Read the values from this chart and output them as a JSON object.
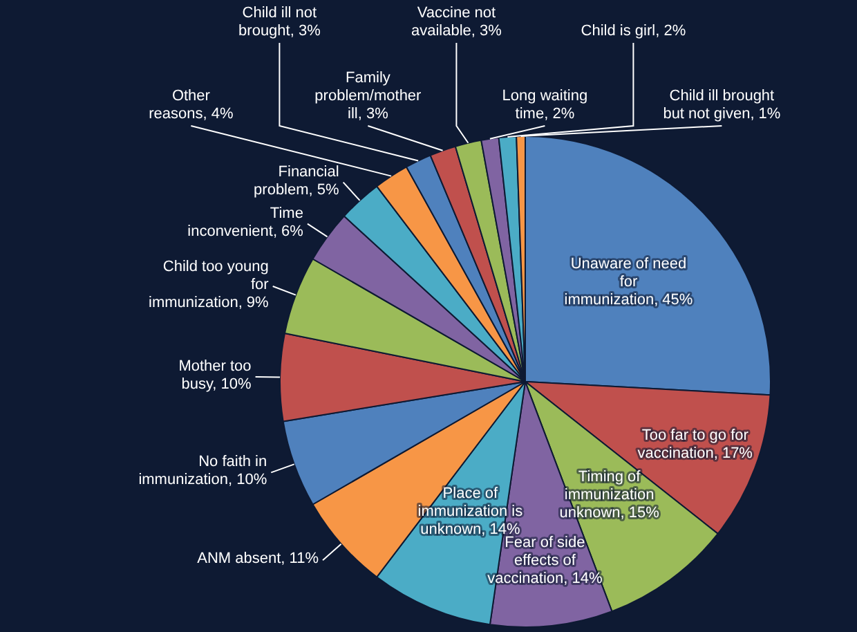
{
  "chart_data": {
    "type": "pie",
    "categories": [
      "Unaware of need for immunization",
      "Too far to go for vaccination",
      "Timing of immunization unknown",
      "Fear of side effects of vaccination",
      "Place of immunization is unknown",
      "ANM absent",
      "No faith in immunization",
      "Mother too busy",
      "Child too young for immunization",
      "Time inconvenient",
      "Financial problem",
      "Other reasons",
      "Child ill not brought",
      "Family problem/mother ill",
      "Vaccine not available",
      "Long waiting time",
      "Child is girl",
      "Child ill brought but not given"
    ],
    "values": [
      45,
      17,
      15,
      14,
      14,
      11,
      10,
      10,
      9,
      6,
      5,
      4,
      3,
      3,
      3,
      2,
      2,
      1
    ],
    "value_labels": [
      "45%",
      "17%",
      "15%",
      "14%",
      "14%",
      "11%",
      "10%",
      "10%",
      "9%",
      "6%",
      "5%",
      "4%",
      "3%",
      "3%",
      "3%",
      "2%",
      "2%",
      "1%"
    ],
    "colors": [
      "#4f81bd",
      "#c0504d",
      "#9bbb59",
      "#8064a2",
      "#4bacc6",
      "#f79646",
      "#4f81bd",
      "#c0504d",
      "#9bbb59",
      "#8064a2",
      "#4bacc6",
      "#f79646",
      "#4f81bd",
      "#c0504d",
      "#9bbb59",
      "#8064a2",
      "#4bacc6",
      "#f79646"
    ]
  }
}
